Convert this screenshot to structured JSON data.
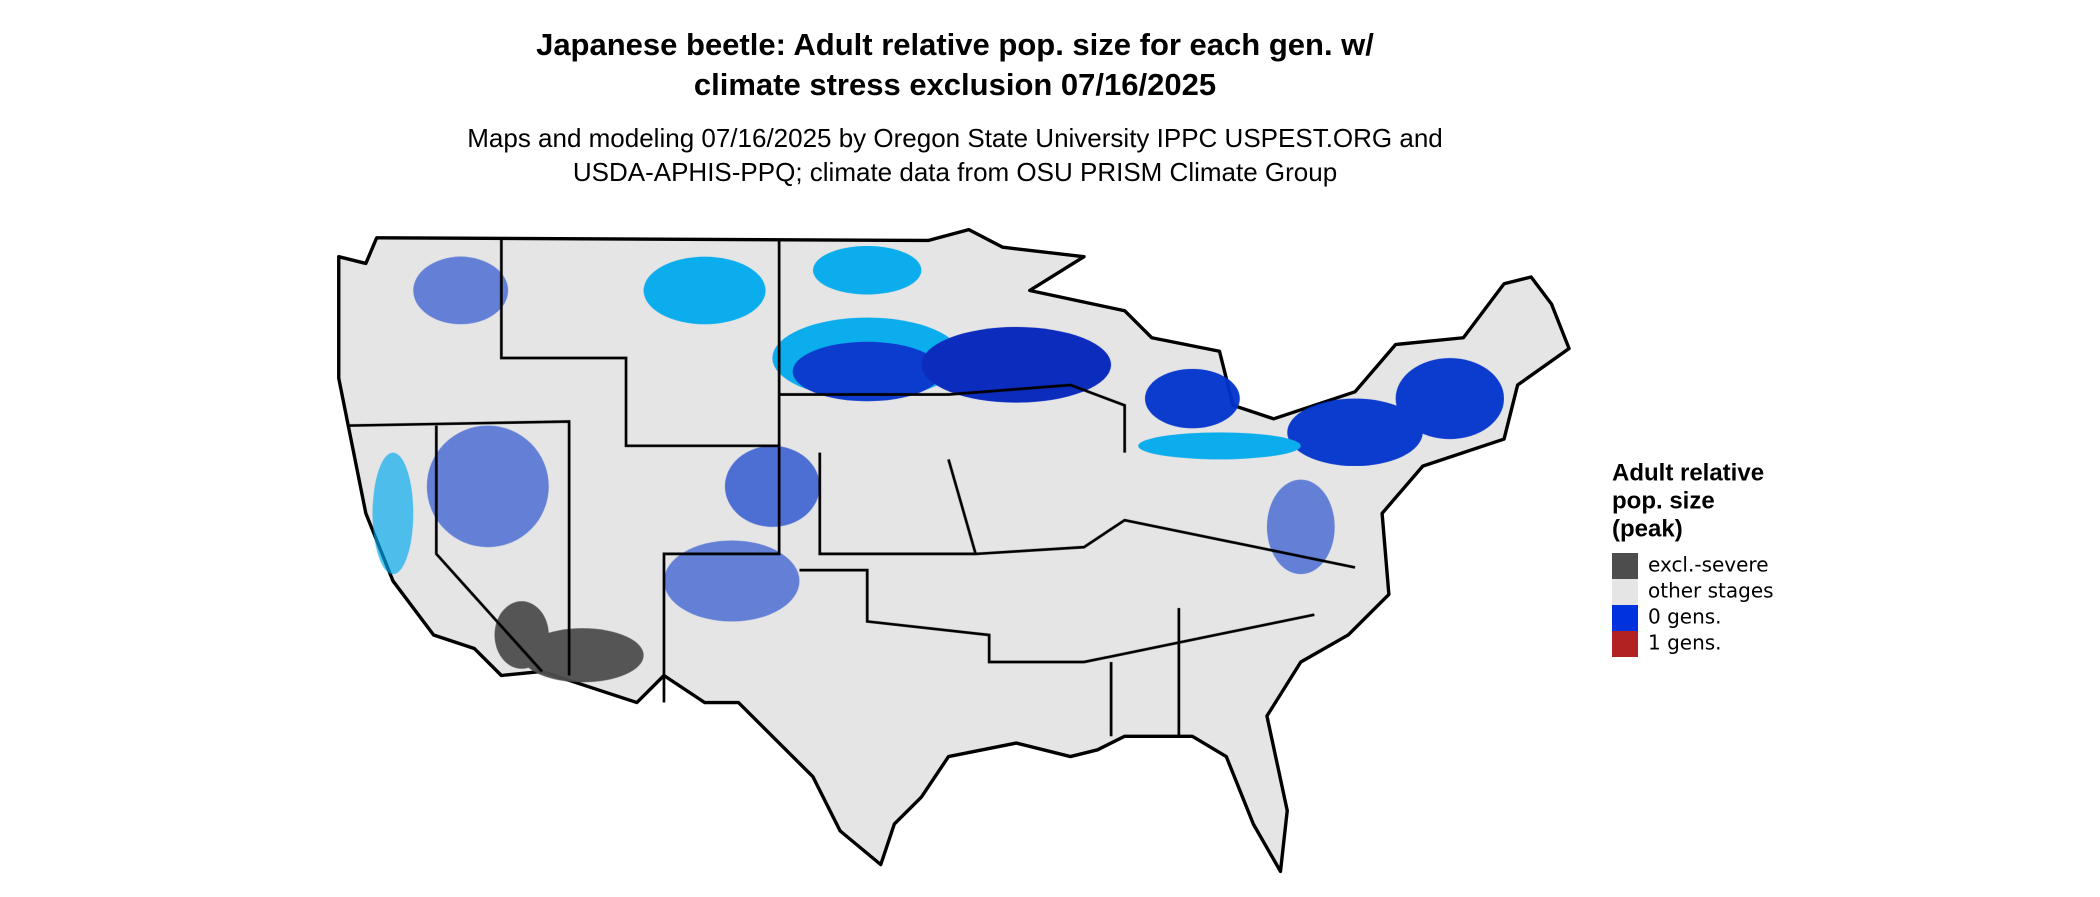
{
  "title": [
    "Japanese beetle: Adult relative pop. size for each gen. w/",
    "climate stress exclusion 07/16/2025"
  ],
  "subtitle": [
    "Maps and modeling 07/16/2025 by Oregon State University IPPC USPEST.ORG and",
    "USDA-APHIS-PPQ; climate data from OSU PRISM Climate Group"
  ],
  "legend": {
    "title": [
      "Adult relative",
      "pop. size",
      "(peak)"
    ],
    "items": [
      {
        "label": "excl.-severe",
        "color": "#4d4d4d"
      },
      {
        "label": "other stages",
        "color": "#e5e5e5"
      },
      {
        "label": "0 gens.",
        "color": "#0033dd"
      },
      {
        "label": "1 gens.",
        "color": "#b22222"
      }
    ]
  }
}
